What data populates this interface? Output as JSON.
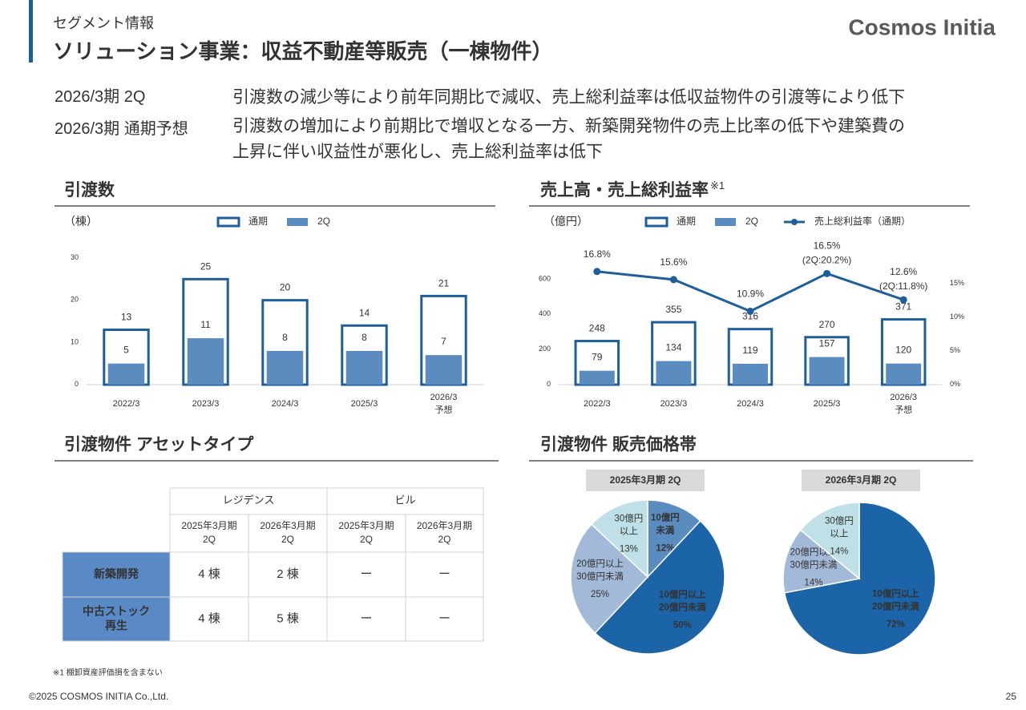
{
  "header": {
    "section": "セグメント情報",
    "title": "ソリューション事業：収益不動産等販売（一棟物件）",
    "logo": "Cosmos Initia"
  },
  "summary": [
    {
      "label": "2026/3期 2Q",
      "lines": [
        "引渡数の減少等により前年同期比で減収、売上総利益率は低収益物件の引渡等により低下"
      ]
    },
    {
      "label": "2026/3期 通期予想",
      "lines": [
        "引渡数の増加により前期比で増収となる一方、新築開発物件の売上比率の低下や建築費の",
        "上昇に伴い収益性が悪化し、売上総利益率は低下"
      ]
    }
  ],
  "sections": {
    "asset_type": "引渡物件 アセットタイプ",
    "price_band": "引渡物件 販売価格帯"
  },
  "chart_data": [
    {
      "type": "bar",
      "title": "引渡数",
      "unit": "（棟）",
      "categories": [
        "2022/3",
        "2023/3",
        "2024/3",
        "2025/3",
        "2026/3\n予想"
      ],
      "series": [
        {
          "name": "通期",
          "color": "#1f5f99",
          "style": "outline",
          "values": [
            13,
            25,
            20,
            14,
            21
          ]
        },
        {
          "name": "2Q",
          "color": "#5b8cc0",
          "values": [
            5,
            11,
            8,
            8,
            7
          ]
        }
      ],
      "ylim": [
        0,
        30
      ],
      "yticks": [
        0,
        10,
        20,
        30
      ]
    },
    {
      "type": "bar_line",
      "title": "売上高・売上総利益率",
      "title_note": "※1",
      "unit": "（億円）",
      "categories": [
        "2022/3",
        "2023/3",
        "2024/3",
        "2025/3",
        "2026/3\n予想"
      ],
      "series": [
        {
          "name": "通期",
          "color": "#1f5f99",
          "style": "outline",
          "values": [
            248,
            355,
            316,
            270,
            371
          ]
        },
        {
          "name": "2Q",
          "color": "#5b8cc0",
          "values": [
            79,
            134,
            119,
            157,
            120
          ]
        },
        {
          "name": "売上総利益率（通期）",
          "color": "#1f5f99",
          "axis": "y2",
          "values": [
            16.8,
            15.6,
            10.9,
            16.5,
            12.6
          ],
          "value_labels": [
            "16.8%",
            "15.6%",
            "10.9%",
            "16.5%",
            "12.6%"
          ],
          "annotations": [
            null,
            null,
            null,
            "(2Q:20.2%)",
            "(2Q:11.8%)"
          ]
        }
      ],
      "ylim": [
        0,
        720
      ],
      "yticks": [
        0,
        200,
        400,
        600
      ],
      "y2lim": [
        0,
        18.8
      ],
      "y2ticks": [
        {
          "value": 0,
          "label": "0%"
        },
        {
          "value": 5,
          "label": "5%"
        },
        {
          "value": 10,
          "label": "10%"
        },
        {
          "value": 15,
          "label": "15%"
        }
      ]
    },
    {
      "type": "pie",
      "title": "2025年3月期 2Q",
      "categories": [
        "10億円\n未満",
        "10億円以上\n20億円未満",
        "20億円以上\n30億円未満",
        "30億円\n以上"
      ],
      "values": [
        12,
        50,
        25,
        13
      ],
      "value_labels": [
        "12%",
        "50%",
        "25%",
        "13%"
      ],
      "colors": [
        "#5b8cc0",
        "#1c64a8",
        "#a3b9d8",
        "#bfe0e6"
      ]
    },
    {
      "type": "pie",
      "title": "2026年3月期 2Q",
      "categories": [
        "10億円以上\n20億円未満",
        "20億円以上\n30億円未満",
        "30億円\n以上"
      ],
      "values": [
        72,
        14,
        14
      ],
      "value_labels": [
        "72%",
        "14%",
        "14%"
      ],
      "colors": [
        "#1c64a8",
        "#a3b9d8",
        "#bfe0e6"
      ]
    }
  ],
  "table": {
    "groups": [
      "レジデンス",
      "ビル"
    ],
    "periods": [
      "2025年3月期\n2Q",
      "2026年3月期\n2Q",
      "2025年3月期\n2Q",
      "2026年3月期\n2Q"
    ],
    "rows": [
      {
        "label": "新築開発",
        "cells": [
          "4 棟",
          "2 棟",
          "ー",
          "ー"
        ]
      },
      {
        "label": "中古ストック\n再生",
        "cells": [
          "4 棟",
          "5 棟",
          "ー",
          "ー"
        ]
      }
    ]
  },
  "footnote": "※1 棚卸資産評価損を含まない",
  "copyright": "©2025 COSMOS INITIA Co.,Ltd.",
  "page_number": 25
}
